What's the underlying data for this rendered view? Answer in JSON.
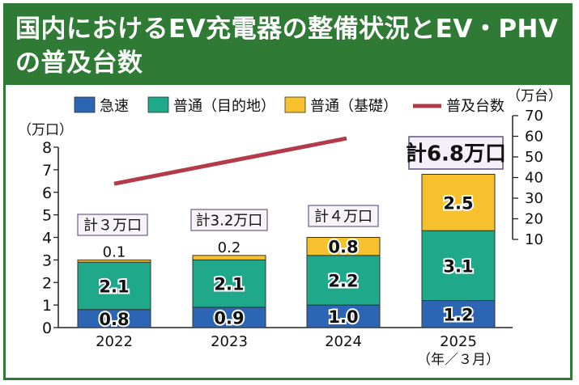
{
  "title": "国内におけるEV充電器の整備状況とEV・PHVの普及台数",
  "chart_data": {
    "type": "bar",
    "stacked": true,
    "categories": [
      "2022",
      "2023",
      "2024",
      "2025"
    ],
    "x_note": "（年／３月）",
    "series": [
      {
        "name": "急速",
        "color": "#2c65b3",
        "values": [
          0.8,
          0.9,
          1.0,
          1.2
        ],
        "labels": [
          "0.8",
          "0.9",
          "1.0",
          "1.2"
        ]
      },
      {
        "name": "普通（目的地）",
        "color": "#1fa88a",
        "values": [
          2.1,
          2.1,
          2.2,
          3.1
        ],
        "labels": [
          "2.1",
          "2.1",
          "2.2",
          "3.1"
        ]
      },
      {
        "name": "普通（基礎）",
        "color": "#f6c12c",
        "values": [
          0.1,
          0.2,
          0.8,
          2.5
        ],
        "labels": [
          "0.1",
          "0.2",
          "0.8",
          "2.5"
        ]
      }
    ],
    "totals": [
      "計３万口",
      "計3.2万口",
      "計４万口",
      "計6.8万口"
    ],
    "left_axis": {
      "unit": "（万口）",
      "range": [
        0,
        8
      ],
      "ticks": [
        "0",
        "1",
        "2",
        "3",
        "4",
        "5",
        "6",
        "7",
        "8"
      ]
    },
    "right_axis": {
      "unit": "（万台）",
      "range": [
        10,
        70
      ],
      "ticks": [
        "10",
        "20",
        "30",
        "40",
        "50",
        "60",
        "70"
      ]
    },
    "line": {
      "name": "普及台数",
      "color": "#b33a48",
      "x": [
        "2022",
        "2024"
      ],
      "y": [
        37,
        59
      ]
    }
  }
}
